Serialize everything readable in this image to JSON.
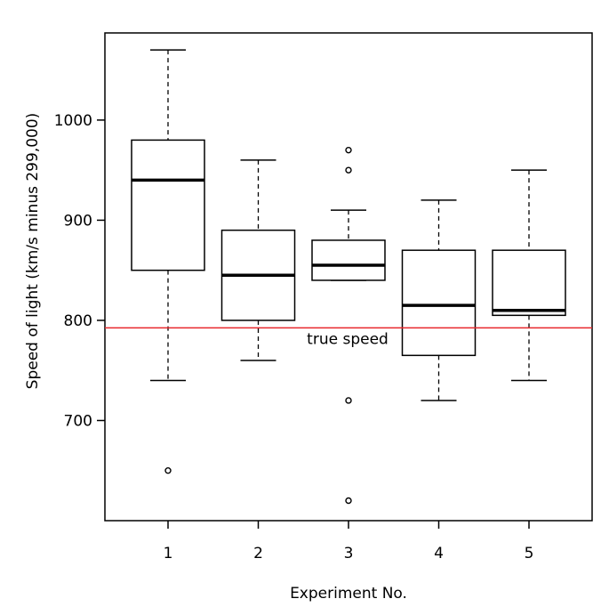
{
  "chart_data": {
    "type": "boxplot",
    "title": "",
    "xlabel": "Experiment No.",
    "ylabel": "Speed of light (km/s minus 299,000)",
    "categories": [
      "1",
      "2",
      "3",
      "4",
      "5"
    ],
    "ylim": [
      600,
      1087
    ],
    "yticks": [
      700,
      800,
      900,
      1000
    ],
    "grid": false,
    "boxes": [
      {
        "category": "1",
        "whisker_low": 740,
        "q1": 850,
        "median": 940,
        "q3": 980,
        "whisker_high": 1070,
        "outliers": [
          650
        ]
      },
      {
        "category": "2",
        "whisker_low": 760,
        "q1": 800,
        "median": 845,
        "q3": 890,
        "whisker_high": 960,
        "outliers": []
      },
      {
        "category": "3",
        "whisker_low": 840,
        "q1": 840,
        "median": 855,
        "q3": 880,
        "whisker_high": 910,
        "outliers": [
          620,
          720,
          950,
          970
        ]
      },
      {
        "category": "4",
        "whisker_low": 720,
        "q1": 765,
        "median": 815,
        "q3": 870,
        "whisker_high": 920,
        "outliers": []
      },
      {
        "category": "5",
        "whisker_low": 740,
        "q1": 805,
        "median": 810,
        "q3": 870,
        "whisker_high": 950,
        "outliers": []
      }
    ],
    "reference_line": {
      "value": 792.458,
      "label": "true speed",
      "color": "#e8282d"
    }
  }
}
